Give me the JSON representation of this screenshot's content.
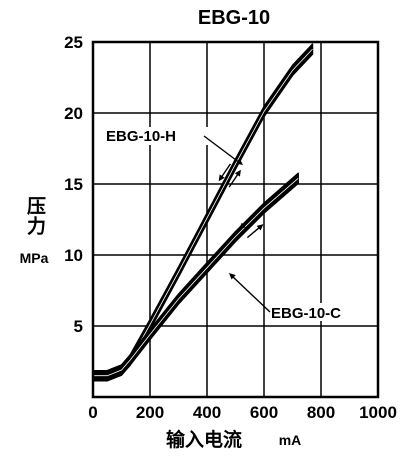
{
  "chart_data": {
    "type": "line",
    "title": "EBG-10",
    "xlabel": "输入电流",
    "xunit": "mA",
    "ylabel": "压力",
    "yunit": "MPa",
    "xlim": [
      0,
      1000
    ],
    "ylim": [
      0,
      25
    ],
    "xticks": [
      "0",
      "200",
      "400",
      "600",
      "800",
      "1000"
    ],
    "yticks": [
      "5",
      "10",
      "15",
      "20",
      "25"
    ],
    "grid": true,
    "series": [
      {
        "name": "EBG-10-H",
        "x": [
          0,
          50,
          100,
          130,
          200,
          300,
          400,
          500,
          600,
          700,
          770
        ],
        "y": [
          1.5,
          1.5,
          1.9,
          2.6,
          5.1,
          8.8,
          12.6,
          16.4,
          20.1,
          23.0,
          24.5
        ],
        "band": 0.35
      },
      {
        "name": "EBG-10-C",
        "x": [
          0,
          50,
          100,
          130,
          200,
          300,
          400,
          500,
          600,
          720
        ],
        "y": [
          1.5,
          1.5,
          1.9,
          2.6,
          4.4,
          6.9,
          9.1,
          11.3,
          13.3,
          15.4
        ],
        "band": 0.35
      }
    ]
  }
}
